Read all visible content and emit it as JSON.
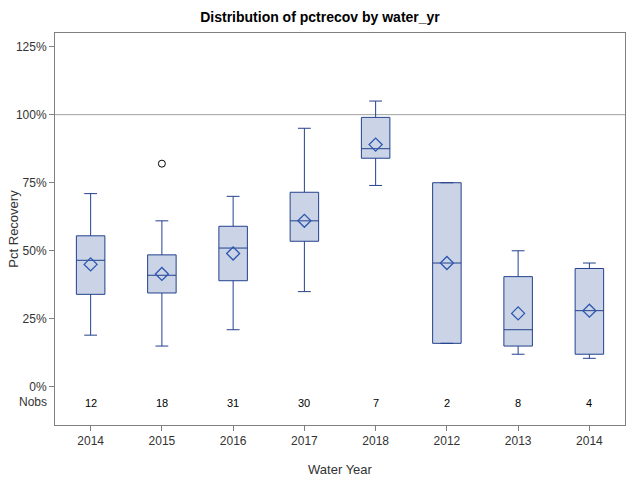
{
  "chart_data": {
    "type": "box",
    "title": "Distribution of pctrecov by water_yr",
    "x_label": "Water Year",
    "y_label": "Pct Recovery",
    "categories": [
      "2014",
      "2015",
      "2016",
      "2017",
      "2018",
      "2012",
      "2013",
      "2014"
    ],
    "lowerfence": [
      19,
      15,
      21,
      35,
      74,
      16,
      12,
      10.5
    ],
    "q1": [
      34,
      34.5,
      39,
      53.5,
      84,
      16,
      15,
      12
    ],
    "median": [
      46.5,
      41,
      51,
      61,
      87.5,
      45.5,
      21,
      28
    ],
    "q3": [
      55.5,
      48.5,
      59,
      71.5,
      99,
      75,
      40.5,
      43.5
    ],
    "upperfence": [
      71,
      61,
      70,
      95,
      105,
      75,
      50,
      45.5
    ],
    "mean": [
      45,
      41.5,
      49,
      61,
      89,
      45.5,
      27,
      28
    ],
    "outliers": [
      [],
      [
        82
      ],
      [],
      [],
      [],
      [],
      [],
      []
    ],
    "nobs_label": "Nobs",
    "nobs": [
      12,
      18,
      31,
      30,
      7,
      2,
      8,
      4
    ],
    "refline": 100,
    "color": "#cad4e6",
    "ylim": [
      -14,
      130
    ],
    "yticks": [
      {
        "value": 0,
        "label": "0%"
      },
      {
        "value": 25,
        "label": "25%"
      },
      {
        "value": 50,
        "label": "50%"
      },
      {
        "value": 75,
        "label": "75%"
      },
      {
        "value": 100,
        "label": "100%"
      },
      {
        "value": 125,
        "label": "125%"
      }
    ],
    "grid": false
  }
}
